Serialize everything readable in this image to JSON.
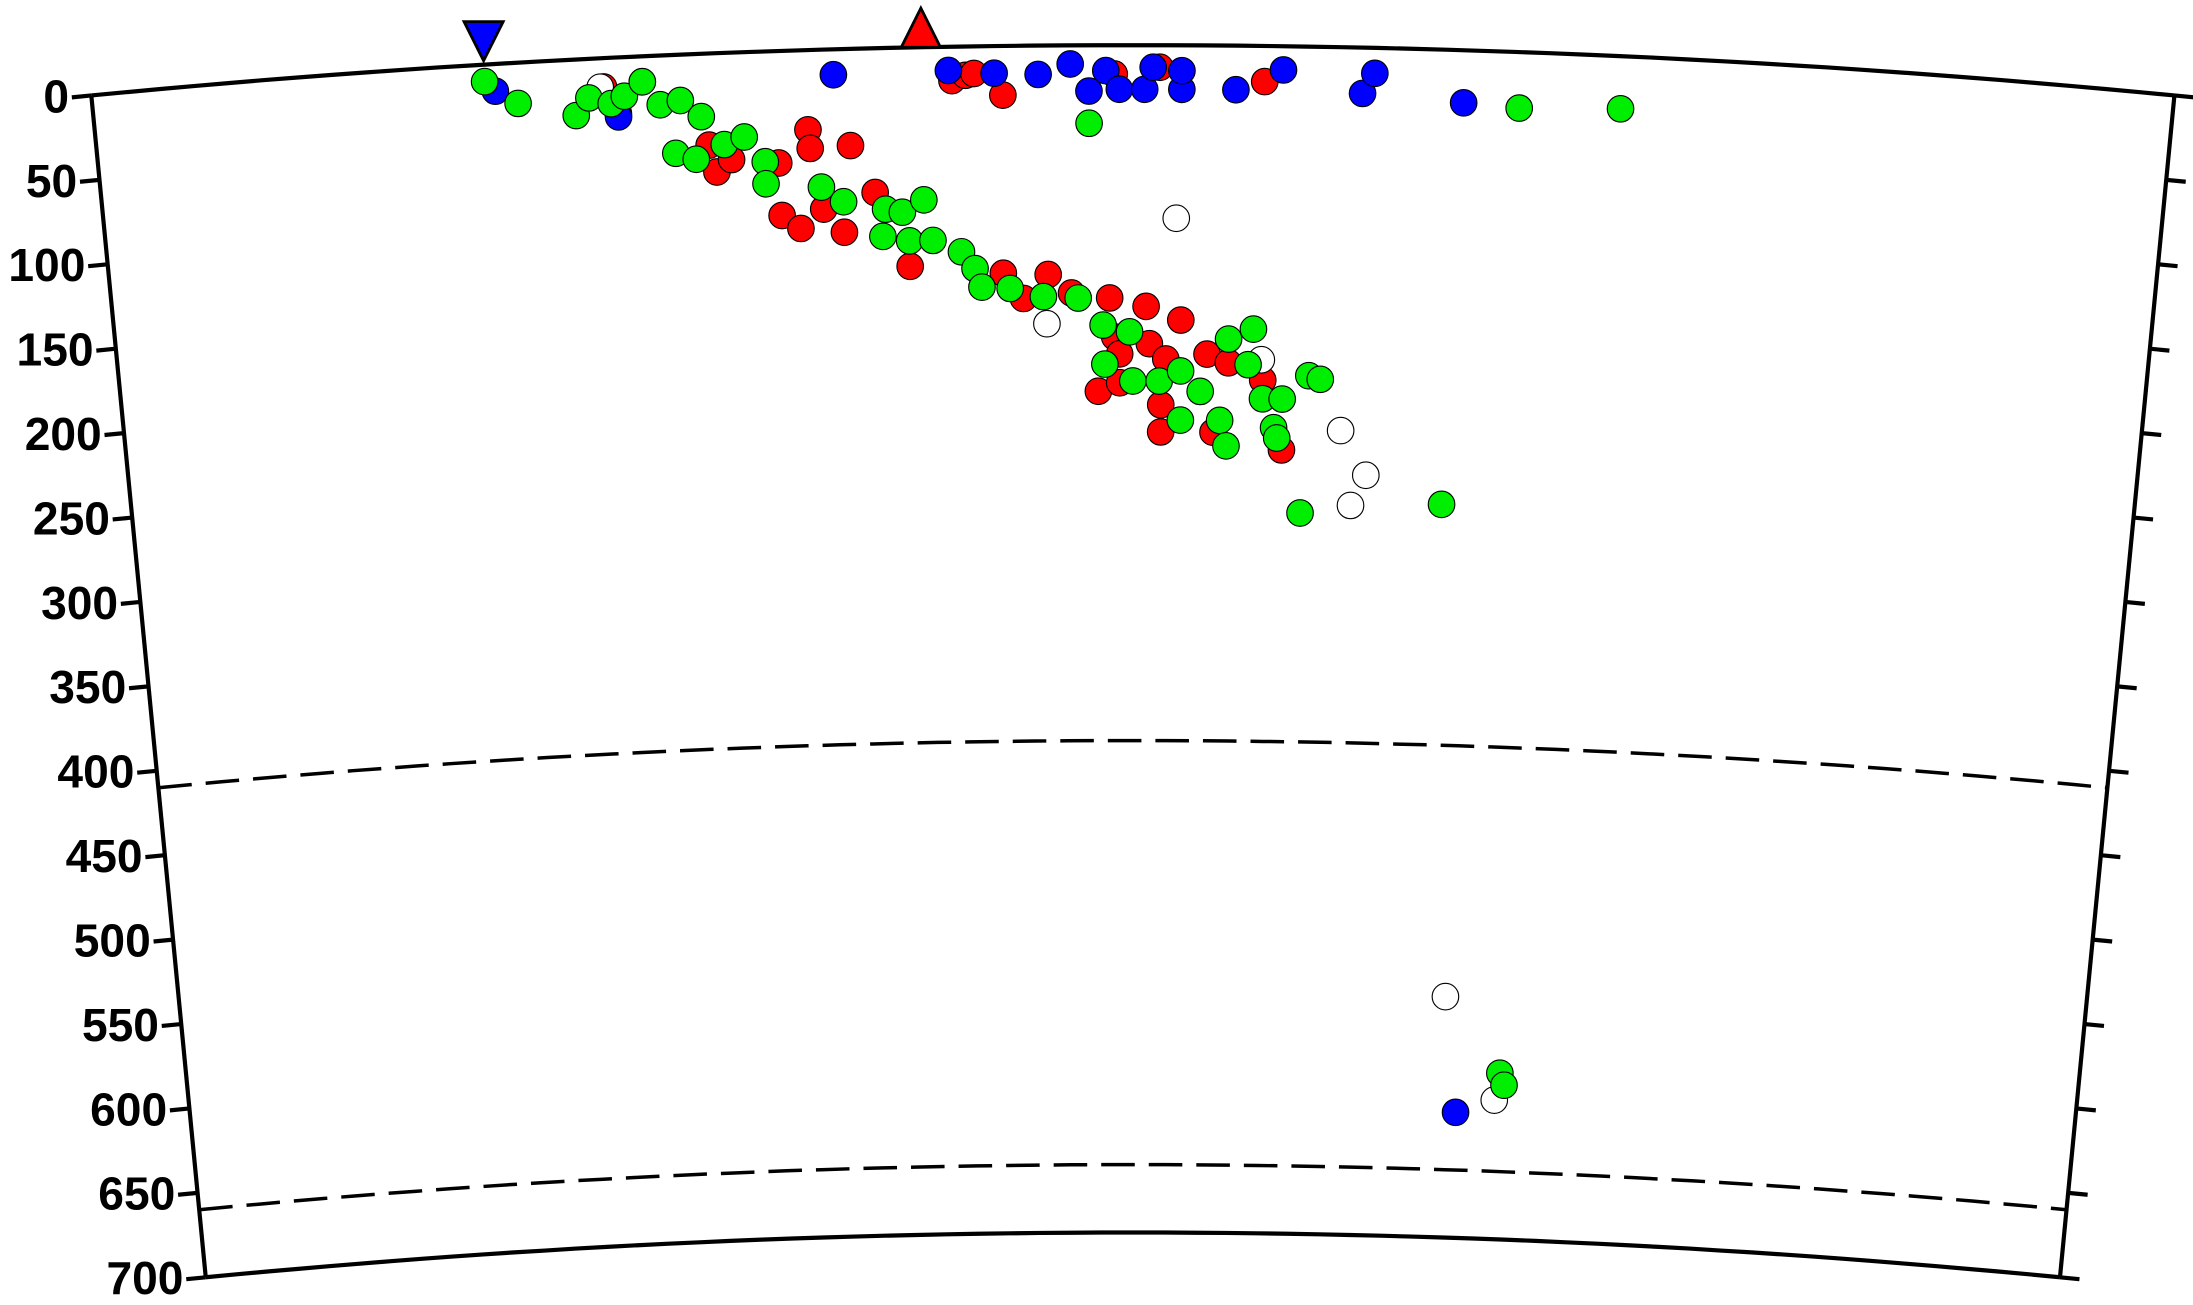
{
  "chart_data": {
    "type": "scatter",
    "xlim": [
      0,
      1230
    ],
    "ylim": [
      0,
      700
    ],
    "yticks": [
      0,
      50,
      100,
      150,
      200,
      250,
      300,
      350,
      400,
      450,
      500,
      550,
      600,
      650,
      700
    ],
    "reference_depths": [
      410,
      660
    ],
    "markers": [
      {
        "x": 232,
        "color": "#0000ff",
        "shape": "triangle-down"
      },
      {
        "x": 490,
        "color": "#ff0000",
        "shape": "triangle-up"
      }
    ],
    "series": [
      {
        "color": "#ff0000",
        "x": [
          302,
          310,
          363,
          367,
          376,
          404,
          422,
          423,
          447,
          405,
          416,
          430,
          442,
          461,
          481,
          537,
          549,
          564,
          578,
          601,
          604,
          607,
          623,
          625,
          635,
          644,
          594,
          607,
          632,
          632,
          660,
          673,
          694,
          664,
          706,
          508,
          516,
          521,
          538,
          604,
          631,
          693
        ],
        "values": [
          17,
          33,
          54,
          70,
          63,
          66,
          47,
          58,
          57,
          97,
          105,
          94,
          108,
          85,
          129,
          134,
          149,
          135,
          146,
          149,
          172,
          182,
          154,
          176,
          185,
          162,
          204,
          199,
          212,
          228,
          182,
          187,
          197,
          228,
          238,
          20,
          17,
          16,
          29,
          17,
          13,
          21
        ]
      },
      {
        "color": "#0000ff",
        "x": [
          238,
          310,
          325,
          438,
          506,
          533,
          559,
          578,
          599,
          589,
          607,
          622,
          644,
          627,
          644,
          676,
          704,
          751,
          758,
          811,
          826
        ],
        "values": [
          16,
          35,
          15,
          15,
          14,
          16,
          17,
          11,
          15,
          27,
          26,
          26,
          26,
          13,
          15,
          26,
          14,
          27,
          15,
          31,
          626
        ]
      },
      {
        "color": "#ffffff",
        "x": [
          300,
          641,
          563,
          693,
          742,
          758,
          749,
          817,
          851
        ],
        "values": [
          17,
          102,
          164,
          185,
          226,
          252,
          270,
          558,
          618
        ]
      },
      {
        "color": "#00ee00",
        "x": [
          232,
          251,
          285,
          293,
          306,
          314,
          325,
          335,
          347,
          359,
          343,
          355,
          372,
          384,
          396,
          396,
          429,
          442,
          467,
          477,
          490,
          465,
          481,
          495,
          512,
          520,
          524,
          541,
          561,
          582,
          597,
          613,
          598,
          615,
          631,
          644,
          656,
          644,
          673,
          688,
          685,
          694,
          706,
          722,
          729,
          701,
          703,
          668,
          672,
          718,
          805,
          844,
          904,
          589,
          854,
          857
        ],
        "values": [
          10,
          24,
          33,
          23,
          27,
          23,
          15,
          29,
          27,
          37,
          58,
          62,
          54,
          50,
          65,
          78,
          81,
          90,
          95,
          97,
          90,
          111,
          114,
          114,
          121,
          131,
          142,
          143,
          148,
          149,
          165,
          169,
          188,
          198,
          198,
          192,
          204,
          221,
          173,
          167,
          188,
          208,
          208,
          194,
          196,
          225,
          231,
          221,
          236,
          275,
          268,
          33,
          31,
          46,
          602,
          609
        ]
      }
    ]
  }
}
